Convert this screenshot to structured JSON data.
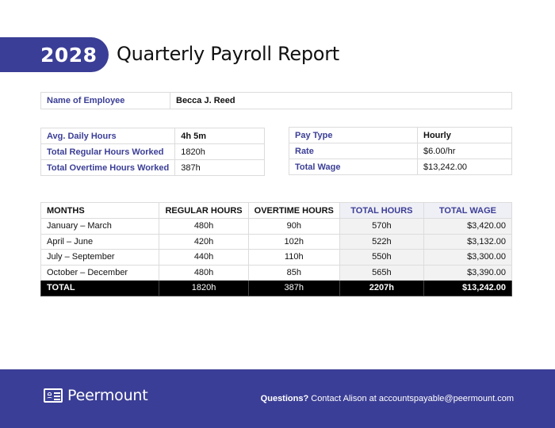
{
  "header": {
    "year": "2028",
    "title": "Quarterly Payroll Report"
  },
  "employee": {
    "label": "Name of Employee",
    "value": "Becca J. Reed"
  },
  "hours_summary": [
    {
      "label": "Avg. Daily Hours",
      "value": "4h 5m"
    },
    {
      "label": "Total Regular Hours Worked",
      "value": "1820h"
    },
    {
      "label": "Total Overtime Hours Worked",
      "value": "387h"
    }
  ],
  "pay_summary": [
    {
      "label": "Pay Type",
      "value": "Hourly"
    },
    {
      "label": "Rate",
      "value": "$6.00/hr"
    },
    {
      "label": "Total Wage",
      "value": "$13,242.00"
    }
  ],
  "months_table": {
    "headers": [
      "MONTHS",
      "REGULAR HOURS",
      "OVERTIME HOURS",
      "TOTAL HOURS",
      "TOTAL WAGE"
    ],
    "rows": [
      {
        "month": "January – March",
        "regular": "480h",
        "overtime": "90h",
        "total_hours": "570h",
        "total_wage": "$3,420.00"
      },
      {
        "month": "April – June",
        "regular": "420h",
        "overtime": "102h",
        "total_hours": "522h",
        "total_wage": "$3,132.00"
      },
      {
        "month": "July – September",
        "regular": "440h",
        "overtime": "110h",
        "total_hours": "550h",
        "total_wage": "$3,300.00"
      },
      {
        "month": "October – December",
        "regular": "480h",
        "overtime": "85h",
        "total_hours": "565h",
        "total_wage": "$3,390.00"
      }
    ],
    "total": {
      "month": "TOTAL",
      "regular": "1820h",
      "overtime": "387h",
      "total_hours": "2207h",
      "total_wage": "$13,242.00"
    }
  },
  "footer": {
    "brand": "Peermount",
    "logo_icon": "id-card-icon",
    "contact_lead": "Questions?",
    "contact_text": " Contact Alison at accountspayable@peermount.com"
  },
  "colors": {
    "accent": "#3b3e96",
    "total_row": "#000000",
    "shaded_cell": "#f2f2f2"
  }
}
